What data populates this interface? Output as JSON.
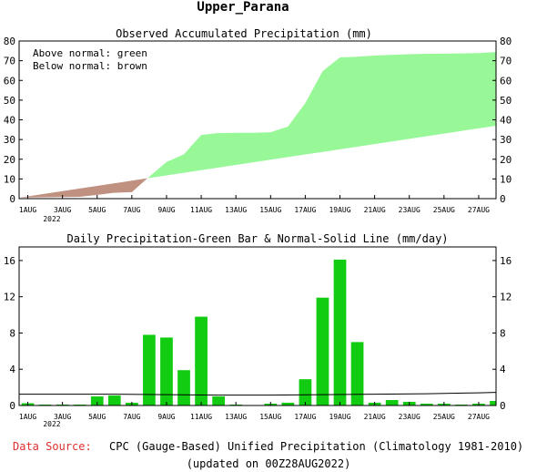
{
  "header": {
    "title": "Upper_Parana"
  },
  "footer": {
    "source_label": "Data Source:",
    "source_text": "CPC (Gauge-Based) Unified Precipitation (Climatology 1981-2010)",
    "updated_text": "(updated on 00Z28AUG2022)"
  },
  "colors": {
    "above_normal": "#98f898",
    "below_normal": "#c09080",
    "bar": "#11cc11",
    "source_label": "#e03030"
  },
  "chart_data": [
    {
      "type": "area",
      "title": "Observed Accumulated Precipitation (mm)",
      "annotations": [
        "Above normal: green",
        "Below normal: brown"
      ],
      "x_tick_labels": [
        "1AUG",
        "3AUG",
        "5AUG",
        "7AUG",
        "9AUG",
        "11AUG",
        "13AUG",
        "15AUG",
        "17AUG",
        "19AUG",
        "21AUG",
        "23AUG",
        "25AUG",
        "27AUG"
      ],
      "x_tick_days": [
        1,
        3,
        5,
        7,
        9,
        11,
        13,
        15,
        17,
        19,
        21,
        23,
        25,
        27
      ],
      "year_label": "2022",
      "xlim": [
        0.5,
        28
      ],
      "ylim": [
        0,
        80
      ],
      "y_ticks": [
        0,
        10,
        20,
        30,
        40,
        50,
        60,
        70,
        80
      ],
      "series": [
        {
          "name": "Observed",
          "x": [
            0.5,
            1,
            2,
            3,
            4,
            5,
            6,
            7,
            8,
            9,
            10,
            11,
            12,
            13,
            14,
            15,
            16,
            17,
            18,
            19,
            20,
            21,
            22,
            23,
            24,
            25,
            26,
            27,
            28
          ],
          "values": [
            0.5,
            0.6,
            0.7,
            0.8,
            0.9,
            1.9,
            3.0,
            3.3,
            11.1,
            18.6,
            22.5,
            32.3,
            33.3,
            33.4,
            33.4,
            33.7,
            36.6,
            48.5,
            64.7,
            71.7,
            72.0,
            72.6,
            73.0,
            73.3,
            73.5,
            73.6,
            73.7,
            73.9,
            74.4
          ]
        },
        {
          "name": "Normal",
          "x": [
            0.5,
            28
          ],
          "values": [
            0.5,
            37.0
          ]
        }
      ]
    },
    {
      "type": "bar",
      "title": "Daily Precipitation-Green Bar & Normal-Solid Line (mm/day)",
      "x_tick_labels": [
        "1AUG",
        "3AUG",
        "5AUG",
        "7AUG",
        "9AUG",
        "11AUG",
        "13AUG",
        "15AUG",
        "17AUG",
        "19AUG",
        "21AUG",
        "23AUG",
        "25AUG",
        "27AUG"
      ],
      "x_tick_days": [
        1,
        3,
        5,
        7,
        9,
        11,
        13,
        15,
        17,
        19,
        21,
        23,
        25,
        27
      ],
      "year_label": "2022",
      "xlim": [
        0.5,
        28
      ],
      "ylim": [
        0,
        17.5
      ],
      "y_ticks": [
        0,
        4,
        8,
        12,
        16
      ],
      "series": [
        {
          "name": "Daily Precipitation",
          "x": [
            1,
            2,
            3,
            4,
            5,
            6,
            7,
            8,
            9,
            10,
            11,
            12,
            13,
            14,
            15,
            16,
            17,
            18,
            19,
            20,
            21,
            22,
            23,
            24,
            25,
            26,
            27,
            28
          ],
          "values": [
            0.25,
            0.1,
            0.1,
            0.1,
            1.0,
            1.1,
            0.3,
            7.8,
            7.5,
            3.9,
            9.8,
            1.0,
            0.1,
            0.05,
            0.2,
            0.3,
            2.9,
            11.9,
            16.1,
            7.0,
            0.3,
            0.6,
            0.4,
            0.2,
            0.2,
            0.1,
            0.2,
            0.5
          ]
        },
        {
          "name": "Normal",
          "x": [
            0.5,
            3,
            6,
            9,
            12,
            15,
            18,
            21,
            24,
            27,
            28
          ],
          "values": [
            1.25,
            1.25,
            1.25,
            1.2,
            1.15,
            1.15,
            1.2,
            1.25,
            1.3,
            1.4,
            1.45
          ]
        }
      ]
    }
  ]
}
